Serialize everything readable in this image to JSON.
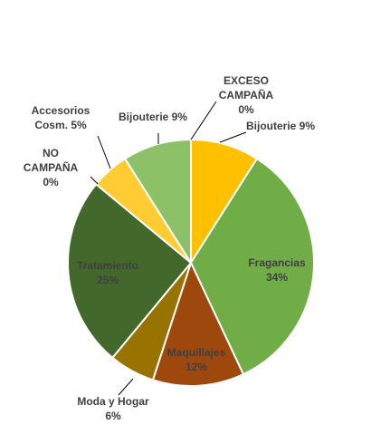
{
  "chart_data": {
    "type": "pie",
    "title": "",
    "start_angle_deg": 0,
    "direction": "clockwise",
    "slice_border_color": "#ffffff",
    "label_color": "#404040",
    "slices": [
      {
        "name": "EXCESO CAMPAÑA",
        "value": 0,
        "percent_label": "0%",
        "color": "#ffc000"
      },
      {
        "name": "Bijouterie",
        "value": 9,
        "percent_label": "9%",
        "color": "#ffc000"
      },
      {
        "name": "Fragancias",
        "value": 34,
        "percent_label": "34%",
        "color": "#70ad47"
      },
      {
        "name": "Maquillajes",
        "value": 12,
        "percent_label": "12%",
        "color": "#9e480e"
      },
      {
        "name": "Moda y Hogar",
        "value": 6,
        "percent_label": "6%",
        "color": "#997300"
      },
      {
        "name": "Tratamiento",
        "value": 25,
        "percent_label": "25%",
        "color": "#43682b"
      },
      {
        "name": "NO CAMPAÑA",
        "value": 0,
        "percent_label": "0%",
        "color": "#ffc000"
      },
      {
        "name": "Accesorios Cosm.",
        "value": 5,
        "percent_label": "5%",
        "color": "#ffcd33"
      },
      {
        "name": "Bijouterie",
        "value": 9,
        "percent_label": "9%",
        "color": "#8cc168"
      }
    ],
    "labels": [
      {
        "lines": [
          "EXCESO",
          "CAMPAÑA",
          "0%"
        ]
      },
      {
        "lines": [
          "Bijouterie 9%"
        ]
      },
      {
        "lines": [
          "Fragancias",
          "34%"
        ]
      },
      {
        "lines": [
          "Maquillajes",
          "12%"
        ]
      },
      {
        "lines": [
          "Moda y Hogar",
          "6%"
        ]
      },
      {
        "lines": [
          "Tratamiento",
          "25%"
        ]
      },
      {
        "lines": [
          "NO",
          "CAMPAÑA",
          "0%"
        ]
      },
      {
        "lines": [
          "Accesorios",
          "Cosm. 5%"
        ]
      },
      {
        "lines": [
          "Bijouterie 9%"
        ]
      }
    ]
  }
}
